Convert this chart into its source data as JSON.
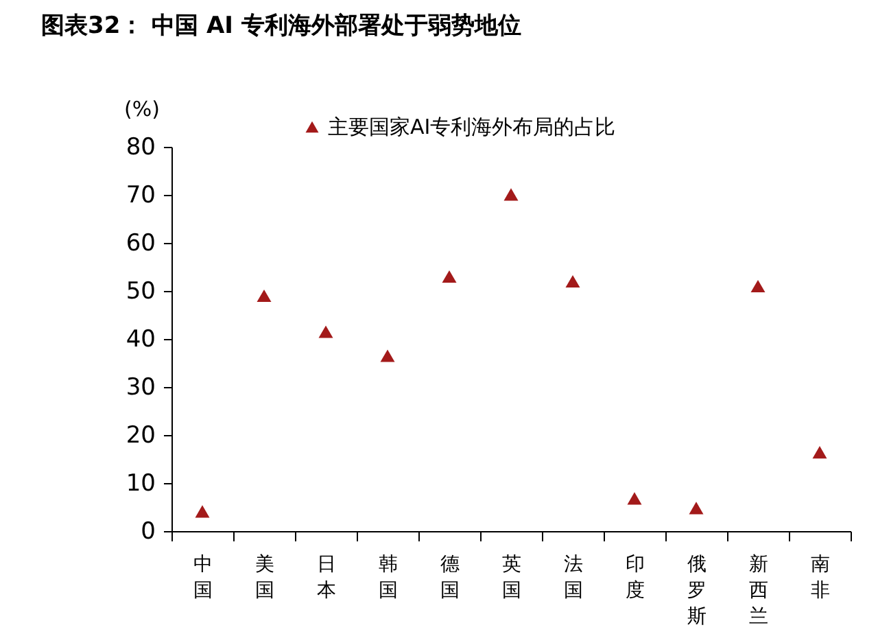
{
  "chart_data": {
    "type": "scatter",
    "title": "图表32：  中国 AI 专利海外部署处于弱势地位",
    "ylabel": "(%)",
    "categories": [
      "中国",
      "美国",
      "日本",
      "韩国",
      "德国",
      "英国",
      "法国",
      "印度",
      "俄罗斯",
      "新西兰",
      "南非"
    ],
    "series": [
      {
        "name": "主要国家AI专利海外布局的占比",
        "color": "#a31a1a",
        "values": [
          4.1,
          49,
          41.5,
          36.5,
          53,
          70.1,
          52,
          6.8,
          4.8,
          51,
          16.4
        ]
      }
    ],
    "ylim": [
      0,
      80
    ],
    "yticks": [
      0,
      10,
      20,
      30,
      40,
      50,
      60,
      70,
      80
    ],
    "grid": false,
    "legend": "top",
    "marker": "triangle"
  }
}
